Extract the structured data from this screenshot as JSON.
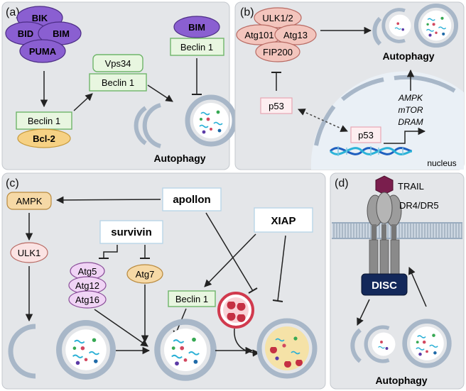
{
  "panels": {
    "a": {
      "label": "(a)",
      "bik": "BIK",
      "bid": "BID",
      "bim": "BIM",
      "puma": "PUMA",
      "beclin1_left": "Beclin 1",
      "bcl2": "Bcl-2",
      "vps34": "Vps34",
      "beclin1_mid": "Beclin 1",
      "bim_right": "BIM",
      "beclin1_right": "Beclin 1",
      "autophagy": "Autophagy"
    },
    "b": {
      "label": "(b)",
      "ulk12": "ULK1/2",
      "atg101": "Atg101",
      "atg13": "Atg13",
      "fip200": "FIP200",
      "p53_cyto": "p53",
      "p53_nuc": "p53",
      "ampk": "AMPK",
      "mtor": "mTOR",
      "dram": "DRAM",
      "nucleus": "nucleus",
      "autophagy": "Autophagy"
    },
    "c": {
      "label": "(c)",
      "ampk": "AMPK",
      "ulk1": "ULK1",
      "apollon": "apollon",
      "survivin": "survivin",
      "xiap": "XIAP",
      "atg5": "Atg5",
      "atg12": "Atg12",
      "atg16": "Atg16",
      "atg7": "Atg7",
      "beclin1": "Beclin 1"
    },
    "d": {
      "label": "(d)",
      "trail": "TRAIL",
      "receptor": "DR4/DR5",
      "disc": "DISC",
      "autophagy": "Autophagy"
    }
  },
  "colors": {
    "panel_bg": "#e4e6e9",
    "purple": "#8a5fd1",
    "green_fill": "#e8f6e0",
    "green_stroke": "#6fb56a",
    "orange_fill": "#f6d184",
    "pink_fill": "#f3c5bd",
    "pink_stroke": "#b86a63",
    "navy": "#13285a",
    "membrane": "#9aacbf"
  }
}
